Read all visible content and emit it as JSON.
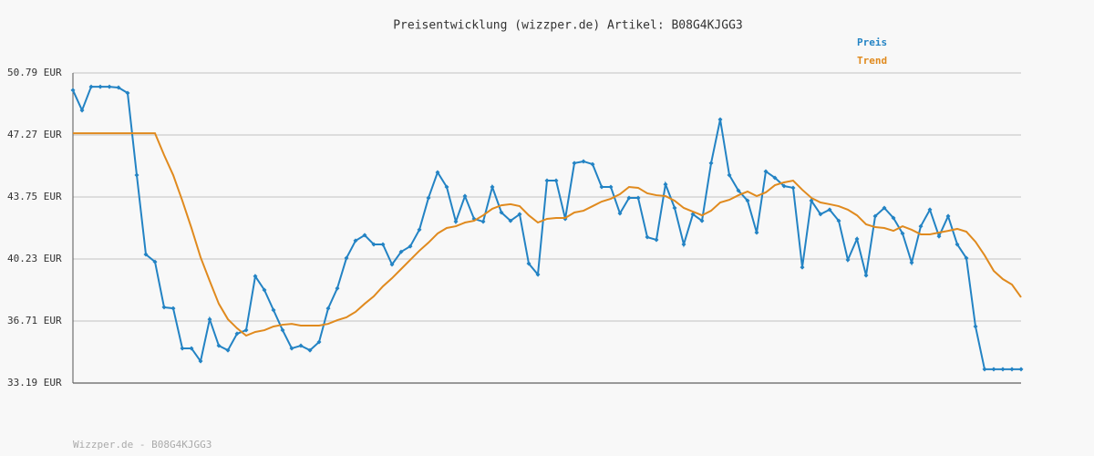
{
  "chart_data": {
    "type": "line",
    "title": "Preisentwicklung (wizzper.de) Artikel: B08G4KJGG3",
    "footer": "Wizzper.de - B08G4KJGG3",
    "legend": "top-right",
    "grid": true,
    "ylim": [
      33.19,
      50.79
    ],
    "yticks": [
      {
        "value": 33.19,
        "label": "33.19 EUR"
      },
      {
        "value": 36.71,
        "label": "36.71 EUR"
      },
      {
        "value": 40.23,
        "label": "40.23 EUR"
      },
      {
        "value": 43.75,
        "label": "43.75 EUR"
      },
      {
        "value": 47.27,
        "label": "47.27 EUR"
      },
      {
        "value": 50.79,
        "label": "50.79 EUR"
      }
    ],
    "series": [
      {
        "name": "Preis",
        "color": "#2383c4",
        "markers": true,
        "values": [
          49.81,
          48.67,
          50.01,
          50.01,
          50.01,
          49.96,
          49.65,
          44.99,
          40.49,
          40.07,
          37.49,
          37.43,
          35.16,
          35.16,
          34.43,
          36.81,
          35.31,
          35.05,
          35.99,
          36.19,
          39.25,
          38.47,
          37.33,
          36.19,
          35.16,
          35.31,
          35.05,
          35.52,
          37.43,
          38.57,
          40.28,
          41.27,
          41.58,
          41.06,
          41.06,
          39.92,
          40.64,
          40.95,
          41.89,
          43.7,
          45.15,
          44.32,
          42.35,
          43.8,
          42.51,
          42.35,
          44.32,
          42.87,
          42.4,
          42.77,
          39.97,
          39.35,
          44.68,
          44.68,
          42.51,
          45.67,
          45.77,
          45.61,
          44.32,
          44.32,
          42.82,
          43.7,
          43.7,
          41.47,
          41.32,
          44.47,
          43.13,
          41.06,
          42.77,
          42.4,
          45.67,
          48.15,
          44.99,
          44.11,
          43.54,
          41.73,
          45.2,
          44.84,
          44.37,
          44.27,
          39.76,
          43.54,
          42.77,
          43.03,
          42.4,
          40.18,
          41.37,
          39.3,
          42.66,
          43.13,
          42.56,
          41.68,
          40.02,
          42.09,
          43.03,
          41.52,
          42.66,
          41.06,
          40.28,
          36.4,
          33.97,
          33.97,
          33.97,
          33.97,
          33.97
        ]
      },
      {
        "name": "Trend",
        "color": "#e08a1e",
        "markers": false,
        "values": [
          47.37,
          47.37,
          47.37,
          47.37,
          47.37,
          47.37,
          47.37,
          47.37,
          47.37,
          47.37,
          46.13,
          44.99,
          43.54,
          41.99,
          40.33,
          38.99,
          37.69,
          36.81,
          36.3,
          35.88,
          36.09,
          36.19,
          36.4,
          36.5,
          36.55,
          36.45,
          36.45,
          36.45,
          36.55,
          36.76,
          36.92,
          37.23,
          37.69,
          38.11,
          38.68,
          39.14,
          39.66,
          40.18,
          40.7,
          41.16,
          41.68,
          41.99,
          42.09,
          42.3,
          42.4,
          42.71,
          43.08,
          43.28,
          43.34,
          43.23,
          42.71,
          42.3,
          42.51,
          42.56,
          42.56,
          42.87,
          42.97,
          43.23,
          43.49,
          43.65,
          43.91,
          44.32,
          44.27,
          43.96,
          43.85,
          43.8,
          43.54,
          43.13,
          42.92,
          42.71,
          42.97,
          43.44,
          43.59,
          43.85,
          44.06,
          43.8,
          44.01,
          44.42,
          44.58,
          44.68,
          44.16,
          43.7,
          43.44,
          43.34,
          43.23,
          43.03,
          42.71,
          42.2,
          42.04,
          41.99,
          41.83,
          42.09,
          41.89,
          41.63,
          41.63,
          41.73,
          41.83,
          41.94,
          41.78,
          41.21,
          40.44,
          39.56,
          39.09,
          38.78,
          38.06
        ]
      }
    ]
  }
}
